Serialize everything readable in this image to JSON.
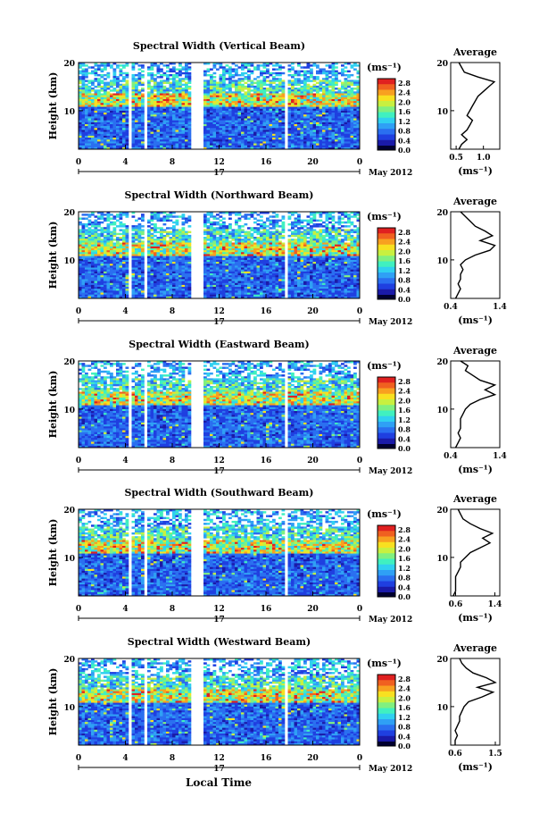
{
  "xlabel": "Local Time",
  "colorbar": {
    "unit": "(ms⁻¹)",
    "ticks": [
      "2.8",
      "2.4",
      "2.0",
      "1.6",
      "1.2",
      "0.8",
      "0.4",
      "0.0"
    ],
    "colors": [
      "#1a1aa8",
      "#1f3fe0",
      "#2a6ff0",
      "#2fa0f5",
      "#30d0f0",
      "#40f0c0",
      "#80f080",
      "#c8f040",
      "#f8e020",
      "#f8a020",
      "#f06020",
      "#e02020"
    ]
  },
  "chart_data": [
    {
      "type": "heatmap",
      "title": "Spectral Width (Vertical Beam)",
      "ylabel": "Height (km)",
      "xlim": [
        0,
        24
      ],
      "ylim": [
        2,
        20
      ],
      "x_ticks": [
        "0",
        "4",
        "8",
        "12",
        "16",
        "20",
        "0"
      ],
      "y_ticks": [
        "20",
        "10"
      ],
      "date_day": "17",
      "date_label": "May 2012",
      "data_gaps_hours": [
        [
          4.2,
          4.6
        ],
        [
          5.6,
          5.9
        ],
        [
          9.7,
          10.6
        ],
        [
          17.6,
          17.9
        ]
      ],
      "profile": {
        "title": "Average",
        "xlabel": "(ms⁻¹)",
        "x_ticks": [
          "0.5",
          "1.0"
        ],
        "xlim": [
          0.4,
          1.3
        ],
        "y_ticks": [
          "20",
          "10"
        ],
        "ylim": [
          2,
          20
        ],
        "heights": [
          2,
          3,
          4,
          5,
          6,
          7,
          8,
          9,
          10,
          11,
          12,
          13,
          14,
          15,
          16,
          17,
          18,
          19,
          20
        ],
        "values": [
          0.55,
          0.6,
          0.7,
          0.6,
          0.7,
          0.75,
          0.8,
          0.7,
          0.75,
          0.8,
          0.85,
          0.9,
          1.0,
          1.1,
          1.2,
          0.9,
          0.65,
          0.6,
          0.55
        ]
      }
    },
    {
      "type": "heatmap",
      "title": "Spectral Width (Northward Beam)",
      "ylabel": "Height (km)",
      "xlim": [
        0,
        24
      ],
      "ylim": [
        2,
        20
      ],
      "x_ticks": [
        "0",
        "4",
        "8",
        "12",
        "16",
        "20",
        "0"
      ],
      "y_ticks": [
        "20",
        "10"
      ],
      "date_day": "17",
      "date_label": "May 2012",
      "data_gaps_hours": [
        [
          4.2,
          4.6
        ],
        [
          5.6,
          5.9
        ],
        [
          9.7,
          10.6
        ],
        [
          17.6,
          17.9
        ]
      ],
      "profile": {
        "title": "Average",
        "xlabel": "(ms⁻¹)",
        "x_ticks": [
          "0.4",
          "1.4"
        ],
        "xlim": [
          0.4,
          1.4
        ],
        "y_ticks": [
          "20",
          "10"
        ],
        "ylim": [
          2,
          20
        ],
        "heights": [
          2,
          3,
          4,
          5,
          6,
          7,
          8,
          9,
          10,
          11,
          12,
          13,
          14,
          15,
          16,
          17,
          18,
          19,
          20
        ],
        "values": [
          0.5,
          0.55,
          0.6,
          0.55,
          0.6,
          0.6,
          0.65,
          0.6,
          0.7,
          0.9,
          1.2,
          1.3,
          1.0,
          1.25,
          1.1,
          0.9,
          0.8,
          0.7,
          0.6
        ]
      }
    },
    {
      "type": "heatmap",
      "title": "Spectral Width (Eastward Beam)",
      "ylabel": "Height (km)",
      "xlim": [
        0,
        24
      ],
      "ylim": [
        2,
        20
      ],
      "x_ticks": [
        "0",
        "4",
        "8",
        "12",
        "16",
        "20",
        "0"
      ],
      "y_ticks": [
        "20",
        "10"
      ],
      "date_day": "17",
      "date_label": "May 2012",
      "data_gaps_hours": [
        [
          4.2,
          4.6
        ],
        [
          5.6,
          5.9
        ],
        [
          9.7,
          10.6
        ],
        [
          17.6,
          17.9
        ]
      ],
      "profile": {
        "title": "Average",
        "xlabel": "(ms⁻¹)",
        "x_ticks": [
          "0.4",
          "1.4"
        ],
        "xlim": [
          0.4,
          1.4
        ],
        "y_ticks": [
          "20",
          "10"
        ],
        "ylim": [
          2,
          20
        ],
        "heights": [
          2,
          3,
          4,
          5,
          6,
          7,
          8,
          9,
          10,
          11,
          12,
          13,
          14,
          15,
          16,
          17,
          18,
          19,
          20
        ],
        "values": [
          0.5,
          0.55,
          0.6,
          0.55,
          0.6,
          0.6,
          0.6,
          0.65,
          0.7,
          0.8,
          1.0,
          1.3,
          1.1,
          1.3,
          1.0,
          0.85,
          0.7,
          0.75,
          0.6
        ]
      }
    },
    {
      "type": "heatmap",
      "title": "Spectral Width (Southward Beam)",
      "ylabel": "Height (km)",
      "xlim": [
        0,
        24
      ],
      "ylim": [
        2,
        20
      ],
      "x_ticks": [
        "0",
        "4",
        "8",
        "12",
        "16",
        "20",
        "0"
      ],
      "y_ticks": [
        "20",
        "10"
      ],
      "date_day": "17",
      "date_label": "May 2012",
      "data_gaps_hours": [
        [
          4.2,
          4.6
        ],
        [
          5.6,
          5.9
        ],
        [
          9.7,
          10.6
        ],
        [
          17.6,
          17.9
        ]
      ],
      "profile": {
        "title": "Average",
        "xlabel": "(ms⁻¹)",
        "x_ticks": [
          "0.6",
          "1.4"
        ],
        "xlim": [
          0.5,
          1.5
        ],
        "y_ticks": [
          "20",
          "10"
        ],
        "ylim": [
          2,
          20
        ],
        "heights": [
          2,
          3,
          4,
          5,
          6,
          7,
          8,
          9,
          10,
          11,
          12,
          13,
          14,
          15,
          16,
          17,
          18,
          19,
          20
        ],
        "values": [
          0.55,
          0.6,
          0.6,
          0.6,
          0.6,
          0.65,
          0.7,
          0.7,
          0.8,
          0.9,
          1.1,
          1.3,
          1.15,
          1.35,
          1.1,
          0.9,
          0.75,
          0.7,
          0.65
        ]
      }
    },
    {
      "type": "heatmap",
      "title": "Spectral Width (Westward Beam)",
      "ylabel": "Height (km)",
      "xlim": [
        0,
        24
      ],
      "ylim": [
        2,
        20
      ],
      "x_ticks": [
        "0",
        "4",
        "8",
        "12",
        "16",
        "20",
        "0"
      ],
      "y_ticks": [
        "20",
        "10"
      ],
      "date_day": "17",
      "date_label": "May 2012",
      "data_gaps_hours": [
        [
          4.2,
          4.6
        ],
        [
          5.6,
          5.9
        ],
        [
          9.7,
          10.6
        ],
        [
          17.6,
          17.9
        ]
      ],
      "profile": {
        "title": "Average",
        "xlabel": "(ms⁻¹)",
        "x_ticks": [
          "0.6",
          "1.5"
        ],
        "xlim": [
          0.5,
          1.6
        ],
        "y_ticks": [
          "20",
          "10"
        ],
        "ylim": [
          2,
          20
        ],
        "heights": [
          2,
          3,
          4,
          5,
          6,
          7,
          8,
          9,
          10,
          11,
          12,
          13,
          14,
          15,
          16,
          17,
          18,
          19,
          20
        ],
        "values": [
          0.6,
          0.6,
          0.65,
          0.6,
          0.65,
          0.7,
          0.7,
          0.75,
          0.8,
          0.9,
          1.2,
          1.45,
          1.1,
          1.5,
          1.3,
          1.0,
          0.85,
          0.75,
          0.7
        ]
      }
    }
  ]
}
